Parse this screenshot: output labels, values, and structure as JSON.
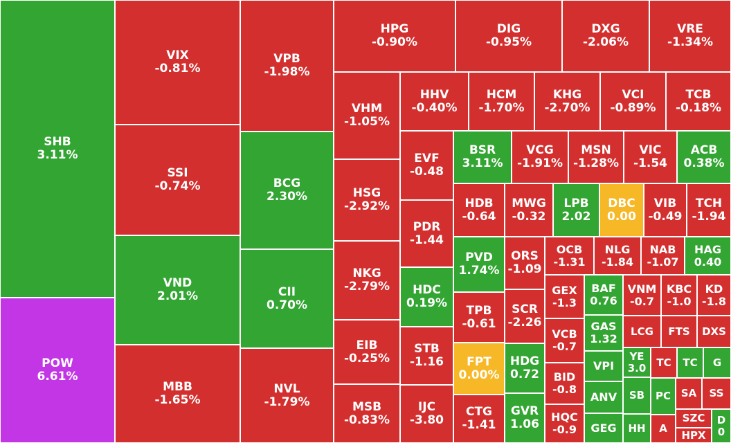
{
  "colors": {
    "up": "#33a532",
    "down": "#d32f2f",
    "flat": "#f6b826",
    "ceiling": "#c236e6"
  },
  "chart_data": {
    "type": "heatmap",
    "tiles": [
      {
        "symbol": "SHB",
        "change": "3.11%",
        "status": "up"
      },
      {
        "symbol": "POW",
        "change": "6.61%",
        "status": "ceiling"
      },
      {
        "symbol": "VIX",
        "change": "-0.81%",
        "status": "down"
      },
      {
        "symbol": "SSI",
        "change": "-0.74%",
        "status": "down"
      },
      {
        "symbol": "VND",
        "change": "2.01%",
        "status": "up"
      },
      {
        "symbol": "MBB",
        "change": "-1.65%",
        "status": "down"
      },
      {
        "symbol": "VPB",
        "change": "-1.98%",
        "status": "down"
      },
      {
        "symbol": "BCG",
        "change": "2.30%",
        "status": "up"
      },
      {
        "symbol": "CII",
        "change": "0.70%",
        "status": "up"
      },
      {
        "symbol": "NVL",
        "change": "-1.79%",
        "status": "down"
      },
      {
        "symbol": "HPG",
        "change": "-0.90%",
        "status": "down"
      },
      {
        "symbol": "DIG",
        "change": "-0.95%",
        "status": "down"
      },
      {
        "symbol": "DXG",
        "change": "-2.06%",
        "status": "down"
      },
      {
        "symbol": "VRE",
        "change": "-1.34%",
        "status": "down"
      },
      {
        "symbol": "VHM",
        "change": "-1.05%",
        "status": "down"
      },
      {
        "symbol": "HSG",
        "change": "-2.92%",
        "status": "down"
      },
      {
        "symbol": "NKG",
        "change": "-2.79%",
        "status": "down"
      },
      {
        "symbol": "EIB",
        "change": "-0.25%",
        "status": "down"
      },
      {
        "symbol": "MSB",
        "change": "-0.83%",
        "status": "down"
      },
      {
        "symbol": "HHV",
        "change": "-0.40%",
        "status": "down"
      },
      {
        "symbol": "HCM",
        "change": "-1.70%",
        "status": "down"
      },
      {
        "symbol": "KHG",
        "change": "-2.70%",
        "status": "down"
      },
      {
        "symbol": "VCI",
        "change": "-0.89%",
        "status": "down"
      },
      {
        "symbol": "TCB",
        "change": "-0.18%",
        "status": "down"
      },
      {
        "symbol": "EVF",
        "change": "-0.48",
        "status": "down"
      },
      {
        "symbol": "PDR",
        "change": "-1.44",
        "status": "down"
      },
      {
        "symbol": "HDC",
        "change": "0.19%",
        "status": "up"
      },
      {
        "symbol": "STB",
        "change": "-1.16",
        "status": "down"
      },
      {
        "symbol": "IJC",
        "change": "-3.80",
        "status": "down"
      },
      {
        "symbol": "BSR",
        "change": "3.11%",
        "status": "up"
      },
      {
        "symbol": "VCG",
        "change": "-1.91%",
        "status": "down"
      },
      {
        "symbol": "MSN",
        "change": "-1.28%",
        "status": "down"
      },
      {
        "symbol": "VIC",
        "change": "-1.54",
        "status": "down"
      },
      {
        "symbol": "ACB",
        "change": "0.38%",
        "status": "up"
      },
      {
        "symbol": "HDB",
        "change": "-0.64",
        "status": "down"
      },
      {
        "symbol": "MWG",
        "change": "-0.32",
        "status": "down"
      },
      {
        "symbol": "LPB",
        "change": "2.02",
        "status": "up"
      },
      {
        "symbol": "DBC",
        "change": "0.00",
        "status": "flat"
      },
      {
        "symbol": "VIB",
        "change": "-0.49",
        "status": "down"
      },
      {
        "symbol": "TCH",
        "change": "-1.94",
        "status": "down"
      },
      {
        "symbol": "PVD",
        "change": "1.74%",
        "status": "up"
      },
      {
        "symbol": "TPB",
        "change": "-0.61",
        "status": "down"
      },
      {
        "symbol": "FPT",
        "change": "0.00%",
        "status": "flat"
      },
      {
        "symbol": "CTG",
        "change": "-1.41",
        "status": "down"
      },
      {
        "symbol": "ORS",
        "change": "-1.09",
        "status": "down"
      },
      {
        "symbol": "SCR",
        "change": "-2.26",
        "status": "down"
      },
      {
        "symbol": "HDG",
        "change": "0.72",
        "status": "up"
      },
      {
        "symbol": "GVR",
        "change": "1.06",
        "status": "up"
      },
      {
        "symbol": "OCB",
        "change": "-1.31",
        "status": "down"
      },
      {
        "symbol": "NLG",
        "change": "-1.84",
        "status": "down"
      },
      {
        "symbol": "NAB",
        "change": "-1.07",
        "status": "down"
      },
      {
        "symbol": "HAG",
        "change": "0.40",
        "status": "up"
      },
      {
        "symbol": "GEX",
        "change": "-1.3",
        "status": "down"
      },
      {
        "symbol": "VCB",
        "change": "-0.7",
        "status": "down"
      },
      {
        "symbol": "BID",
        "change": "-0.8",
        "status": "down"
      },
      {
        "symbol": "HQC",
        "change": "-0.9",
        "status": "down"
      },
      {
        "symbol": "BAF",
        "change": "0.76",
        "status": "up"
      },
      {
        "symbol": "GAS",
        "change": "1.32",
        "status": "up"
      },
      {
        "symbol": "VPI",
        "change": "",
        "status": "up"
      },
      {
        "symbol": "ANV",
        "change": "",
        "status": "up"
      },
      {
        "symbol": "GEG",
        "change": "",
        "status": "up"
      },
      {
        "symbol": "VNM",
        "change": "-0.7",
        "status": "down"
      },
      {
        "symbol": "KBC",
        "change": "-1.0",
        "status": "down"
      },
      {
        "symbol": "KD",
        "change": "-1.8",
        "status": "down"
      },
      {
        "symbol": "LCG",
        "change": "",
        "status": "down"
      },
      {
        "symbol": "FTS",
        "change": "",
        "status": "down"
      },
      {
        "symbol": "DXS",
        "change": "",
        "status": "down"
      },
      {
        "symbol": "YE",
        "change": "3.0",
        "status": "up"
      },
      {
        "symbol": "SB",
        "change": "",
        "status": "up"
      },
      {
        "symbol": "HH",
        "change": "",
        "status": "up"
      },
      {
        "symbol": "TC",
        "change": "",
        "status": "down"
      },
      {
        "symbol": "TC",
        "change": "",
        "status": "up"
      },
      {
        "symbol": "G",
        "change": "",
        "status": "up"
      },
      {
        "symbol": "PC",
        "change": "",
        "status": "up"
      },
      {
        "symbol": "A",
        "change": "",
        "status": "down"
      },
      {
        "symbol": "SA",
        "change": "",
        "status": "down"
      },
      {
        "symbol": "SS",
        "change": "",
        "status": "down"
      },
      {
        "symbol": "SZC",
        "change": "",
        "status": "down"
      },
      {
        "symbol": "HPX",
        "change": "",
        "status": "down"
      },
      {
        "symbol": "D",
        "change": "0",
        "status": "up"
      }
    ]
  }
}
